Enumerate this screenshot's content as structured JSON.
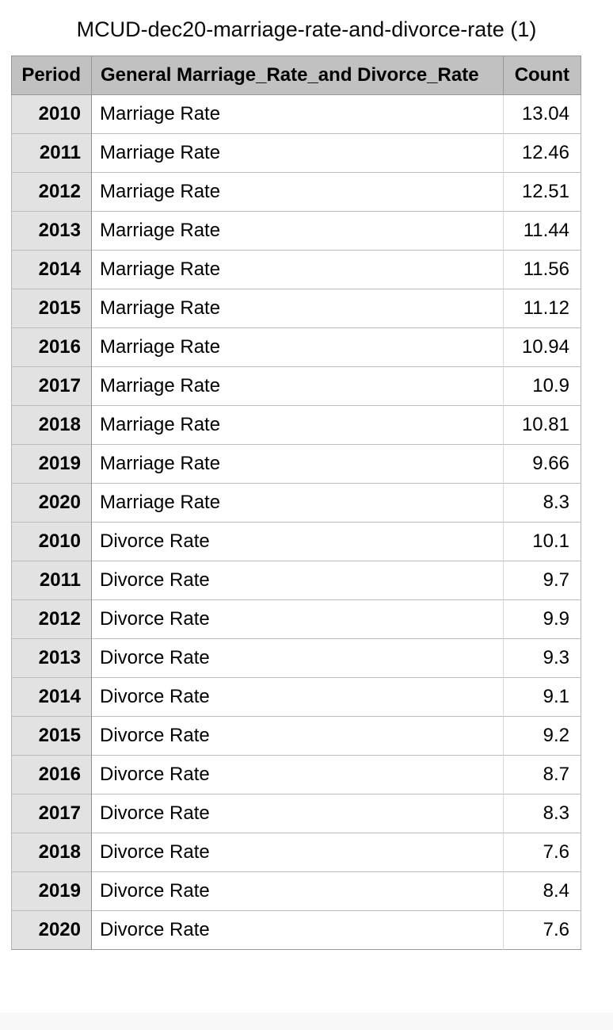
{
  "title": "MCUD-dec20-marriage-rate-and-divorce-rate (1)",
  "table": {
    "columns": {
      "period": "Period",
      "rate": "General Marriage_Rate_and Divorce_Rate",
      "count": "Count"
    },
    "rows": [
      {
        "period": "2010",
        "rate": "Marriage Rate",
        "count": "13.04"
      },
      {
        "period": "2011",
        "rate": "Marriage Rate",
        "count": "12.46"
      },
      {
        "period": "2012",
        "rate": "Marriage Rate",
        "count": "12.51"
      },
      {
        "period": "2013",
        "rate": "Marriage Rate",
        "count": "11.44"
      },
      {
        "period": "2014",
        "rate": "Marriage Rate",
        "count": "11.56"
      },
      {
        "period": "2015",
        "rate": "Marriage Rate",
        "count": "11.12"
      },
      {
        "period": "2016",
        "rate": "Marriage Rate",
        "count": "10.94"
      },
      {
        "period": "2017",
        "rate": "Marriage Rate",
        "count": "10.9"
      },
      {
        "period": "2018",
        "rate": "Marriage Rate",
        "count": "10.81"
      },
      {
        "period": "2019",
        "rate": "Marriage Rate",
        "count": "9.66"
      },
      {
        "period": "2020",
        "rate": "Marriage Rate",
        "count": "8.3"
      },
      {
        "period": "2010",
        "rate": "Divorce Rate",
        "count": "10.1"
      },
      {
        "period": "2011",
        "rate": "Divorce Rate",
        "count": "9.7"
      },
      {
        "period": "2012",
        "rate": "Divorce Rate",
        "count": "9.9"
      },
      {
        "period": "2013",
        "rate": "Divorce Rate",
        "count": "9.3"
      },
      {
        "period": "2014",
        "rate": "Divorce Rate",
        "count": "9.1"
      },
      {
        "period": "2015",
        "rate": "Divorce Rate",
        "count": "9.2"
      },
      {
        "period": "2016",
        "rate": "Divorce Rate",
        "count": "8.7"
      },
      {
        "period": "2017",
        "rate": "Divorce Rate",
        "count": "8.3"
      },
      {
        "period": "2018",
        "rate": "Divorce Rate",
        "count": "7.6"
      },
      {
        "period": "2019",
        "rate": "Divorce Rate",
        "count": "8.4"
      },
      {
        "period": "2020",
        "rate": "Divorce Rate",
        "count": "7.6"
      }
    ]
  },
  "colors": {
    "header_bg": "#c1c1c1",
    "header_border": "#979797",
    "period_cell_bg": "#e2e2e2",
    "row_border": "#bcbcbc",
    "period_divider": "#8e8e8e",
    "count_divider": "#d8d8d8"
  },
  "chart_data": {
    "type": "table",
    "title": "MCUD-dec20-marriage-rate-and-divorce-rate (1)",
    "columns": [
      "Period",
      "General Marriage_Rate_and Divorce_Rate",
      "Count"
    ],
    "x": [
      2010,
      2011,
      2012,
      2013,
      2014,
      2015,
      2016,
      2017,
      2018,
      2019,
      2020
    ],
    "series": [
      {
        "name": "Marriage Rate",
        "values": [
          13.04,
          12.46,
          12.51,
          11.44,
          11.56,
          11.12,
          10.94,
          10.9,
          10.81,
          9.66,
          8.3
        ]
      },
      {
        "name": "Divorce Rate",
        "values": [
          10.1,
          9.7,
          9.9,
          9.3,
          9.1,
          9.2,
          8.7,
          8.3,
          7.6,
          8.4,
          7.6
        ]
      }
    ]
  }
}
